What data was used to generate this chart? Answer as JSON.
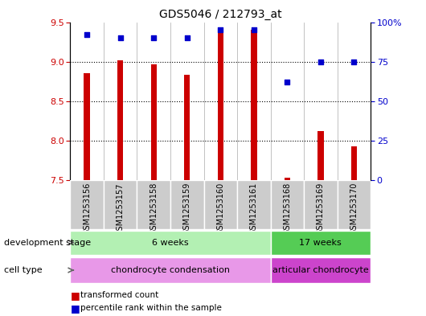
{
  "title": "GDS5046 / 212793_at",
  "samples": [
    "GSM1253156",
    "GSM1253157",
    "GSM1253158",
    "GSM1253159",
    "GSM1253160",
    "GSM1253161",
    "GSM1253168",
    "GSM1253169",
    "GSM1253170"
  ],
  "transformed_count": [
    8.85,
    9.02,
    8.97,
    8.83,
    9.42,
    9.4,
    7.53,
    8.12,
    7.93
  ],
  "percentile_rank": [
    92,
    90,
    90,
    90,
    95,
    95,
    62,
    75,
    75
  ],
  "ylim_left": [
    7.5,
    9.5
  ],
  "ylim_right": [
    0,
    100
  ],
  "yticks_left": [
    7.5,
    8.0,
    8.5,
    9.0,
    9.5
  ],
  "yticks_right": [
    0,
    25,
    50,
    75,
    100
  ],
  "bar_color": "#cc0000",
  "dot_color": "#0000cc",
  "bar_bottom": 7.5,
  "bar_width": 0.18,
  "groups": [
    {
      "label": "6 weeks",
      "start": 0,
      "end": 5,
      "color": "#b3f0b3"
    },
    {
      "label": "17 weeks",
      "start": 6,
      "end": 8,
      "color": "#55cc55"
    }
  ],
  "cell_types": [
    {
      "label": "chondrocyte condensation",
      "start": 0,
      "end": 5,
      "color": "#e898e8"
    },
    {
      "label": "articular chondrocyte",
      "start": 6,
      "end": 8,
      "color": "#cc44cc"
    }
  ],
  "dev_stage_label": "development stage",
  "cell_type_label": "cell type",
  "legend_bar_label": "transformed count",
  "legend_dot_label": "percentile rank within the sample",
  "bg_color": "#ffffff",
  "sample_box_color": "#cccccc",
  "axis_color_left": "#cc0000",
  "axis_color_right": "#0000cc",
  "grid_yticks": [
    8.0,
    8.5,
    9.0
  ]
}
